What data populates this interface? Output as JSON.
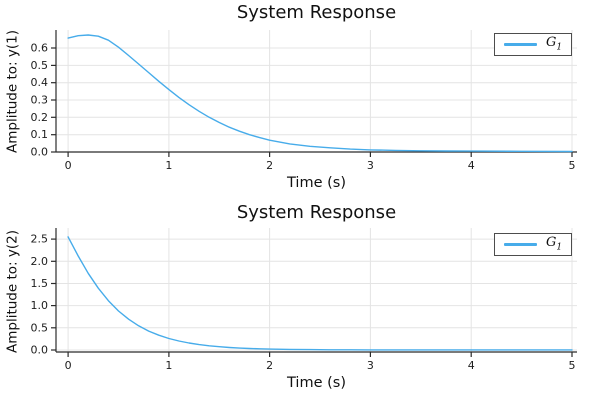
{
  "app": {
    "type": "plot-figure",
    "background": "#ffffff"
  },
  "style": {
    "series_color": "#47ACEA",
    "grid_color": "#E4E4E4",
    "axis_color": "#2B2B2B",
    "tick_text_color": "#1C1C1C",
    "legend_border_color": "#4D4D4D"
  },
  "chart_data": [
    {
      "type": "line",
      "title": "System Response",
      "xlabel": "Time (s)",
      "ylabel": "Amplitude to: y(1)",
      "grid": true,
      "legend_position": "top-right",
      "legend_entries": [
        {
          "label": "G",
          "subscript": "1"
        }
      ],
      "xlim": [
        -0.12,
        5.05
      ],
      "ylim": [
        0,
        0.704
      ],
      "xticks": [
        0,
        1,
        2,
        3,
        4,
        5
      ],
      "xtick_labels": [
        "0",
        "1",
        "2",
        "3",
        "4",
        "5"
      ],
      "yticks": [
        0,
        0.1,
        0.2,
        0.3,
        0.4,
        0.5,
        0.6
      ],
      "ytick_labels": [
        "0.0",
        "0.1",
        "0.2",
        "0.3",
        "0.4",
        "0.5",
        "0.6"
      ],
      "series": [
        {
          "name": "G_1",
          "x": [
            0,
            0.1,
            0.2,
            0.3,
            0.4,
            0.5,
            0.6,
            0.7,
            0.8,
            0.9,
            1.0,
            1.1,
            1.2,
            1.3,
            1.4,
            1.5,
            1.6,
            1.7,
            1.8,
            1.9,
            2.0,
            2.2,
            2.4,
            2.6,
            2.8,
            3.0,
            3.25,
            3.5,
            3.75,
            4.0,
            4.5,
            5.0
          ],
          "y": [
            0.657,
            0.671,
            0.675,
            0.668,
            0.645,
            0.605,
            0.557,
            0.508,
            0.458,
            0.408,
            0.36,
            0.315,
            0.273,
            0.235,
            0.2,
            0.17,
            0.143,
            0.12,
            0.1,
            0.083,
            0.068,
            0.047,
            0.033,
            0.024,
            0.017,
            0.012,
            0.009,
            0.007,
            0.006,
            0.005,
            0.004,
            0.003
          ]
        }
      ]
    },
    {
      "type": "line",
      "title": "System Response",
      "xlabel": "Time (s)",
      "ylabel": "Amplitude to: y(2)",
      "grid": true,
      "legend_position": "top-right",
      "legend_entries": [
        {
          "label": "G",
          "subscript": "1"
        }
      ],
      "xlim": [
        -0.12,
        5.05
      ],
      "ylim": [
        -0.045,
        2.75
      ],
      "xticks": [
        0,
        1,
        2,
        3,
        4,
        5
      ],
      "xtick_labels": [
        "0",
        "1",
        "2",
        "3",
        "4",
        "5"
      ],
      "yticks": [
        0,
        0.5,
        1.0,
        1.5,
        2.0,
        2.5
      ],
      "ytick_labels": [
        "0.0",
        "0.5",
        "1.0",
        "1.5",
        "2.0",
        "2.5"
      ],
      "series": [
        {
          "name": "G_1",
          "x": [
            0,
            0.1,
            0.2,
            0.3,
            0.4,
            0.5,
            0.6,
            0.7,
            0.8,
            0.9,
            1.0,
            1.1,
            1.2,
            1.3,
            1.4,
            1.5,
            1.6,
            1.7,
            1.8,
            1.9,
            2.0,
            2.2,
            2.4,
            2.6,
            2.8,
            3.0,
            3.5,
            4.0,
            4.5,
            5.0
          ],
          "y": [
            2.55,
            2.119,
            1.729,
            1.393,
            1.111,
            0.88,
            0.694,
            0.545,
            0.426,
            0.333,
            0.26,
            0.202,
            0.157,
            0.122,
            0.095,
            0.074,
            0.057,
            0.044,
            0.034,
            0.027,
            0.021,
            0.013,
            0.008,
            0.005,
            0.004,
            0.003,
            0.002,
            0.002,
            0.002,
            0.002
          ]
        }
      ]
    }
  ]
}
